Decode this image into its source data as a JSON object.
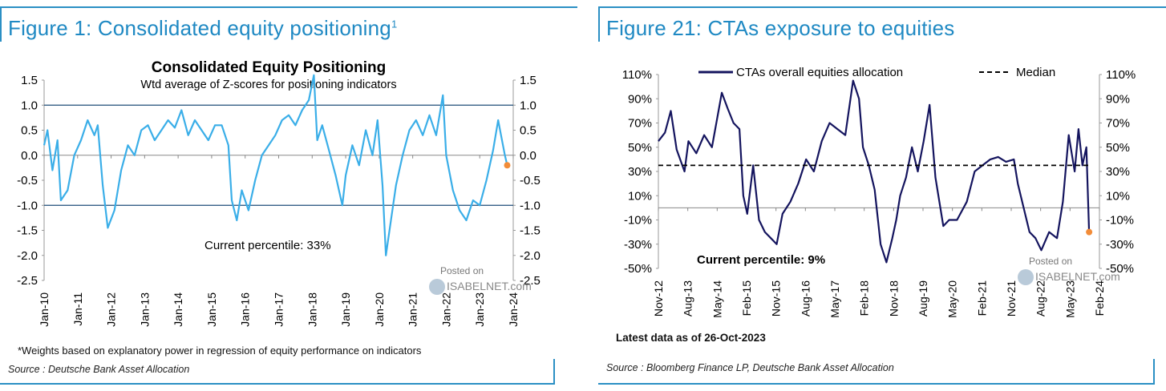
{
  "left_panel": {
    "figure_title": "Figure 1: Consolidated equity positioning",
    "figure_title_sup": "1",
    "footnote": "*Weights based on explanatory power in regression of equity performance on indicators",
    "source": "Source : Deutsche Bank Asset Allocation",
    "watermark": {
      "line1": "Posted on",
      "line2": "ISABELNET.com"
    }
  },
  "right_panel": {
    "figure_title": "Figure 21: CTAs exposure to equities",
    "latest_data": "Latest data as of 26-Oct-2023",
    "source": "Source : Bloomberg Finance LP, Deutsche Bank Asset Allocation",
    "watermark": {
      "line1": "Posted on",
      "line2": "ISABELNET.com"
    }
  },
  "chart_data": [
    {
      "type": "line",
      "title": "Consolidated Equity Positioning",
      "subtitle": "Wtd average of Z-scores for positioning indicators",
      "annotation": "Current percentile: 33%",
      "xlabel": "",
      "ylabel": "",
      "ylim": [
        -2.5,
        1.5
      ],
      "y_ticks": [
        "1.5",
        "1.0",
        "0.5",
        "0.0",
        "-0.5",
        "-1.0",
        "-1.5",
        "-2.0",
        "-2.5"
      ],
      "y_tick_values": [
        1.5,
        1.0,
        0.5,
        0.0,
        -0.5,
        -1.0,
        -1.5,
        -2.0,
        -2.5
      ],
      "xlim": [
        2010.0,
        2024.0
      ],
      "x_ticks": [
        "Jan-10",
        "Jan-11",
        "Jan-12",
        "Jan-13",
        "Jan-14",
        "Jan-15",
        "Jan-16",
        "Jan-17",
        "Jan-18",
        "Jan-19",
        "Jan-20",
        "Jan-21",
        "Jan-22",
        "Jan-23",
        "Jan-24"
      ],
      "reference_lines": [
        1.0,
        -1.0
      ],
      "grid": false,
      "dual_y_axis": true,
      "series": [
        {
          "color": "#3aaee8",
          "x": [
            2010.0,
            2010.1,
            2010.25,
            2010.4,
            2010.5,
            2010.7,
            2010.9,
            2011.1,
            2011.3,
            2011.5,
            2011.6,
            2011.75,
            2011.9,
            2012.1,
            2012.3,
            2012.5,
            2012.7,
            2012.9,
            2013.1,
            2013.3,
            2013.5,
            2013.7,
            2013.9,
            2014.1,
            2014.3,
            2014.5,
            2014.7,
            2014.9,
            2015.1,
            2015.3,
            2015.5,
            2015.6,
            2015.75,
            2015.9,
            2016.1,
            2016.3,
            2016.5,
            2016.7,
            2016.9,
            2017.1,
            2017.3,
            2017.5,
            2017.7,
            2017.9,
            2018.05,
            2018.15,
            2018.3,
            2018.5,
            2018.7,
            2018.9,
            2019.0,
            2019.2,
            2019.4,
            2019.6,
            2019.8,
            2019.95,
            2020.1,
            2020.2,
            2020.35,
            2020.5,
            2020.7,
            2020.9,
            2021.1,
            2021.3,
            2021.5,
            2021.7,
            2021.9,
            2022.0,
            2022.2,
            2022.4,
            2022.6,
            2022.8,
            2023.0,
            2023.2,
            2023.4,
            2023.55,
            2023.65,
            2023.75,
            2023.82
          ],
          "y": [
            0.2,
            0.5,
            -0.3,
            0.3,
            -0.9,
            -0.7,
            0.0,
            0.3,
            0.7,
            0.4,
            0.6,
            -0.6,
            -1.45,
            -1.1,
            -0.3,
            0.2,
            0.0,
            0.5,
            0.6,
            0.3,
            0.5,
            0.7,
            0.55,
            0.9,
            0.4,
            0.7,
            0.5,
            0.3,
            0.6,
            0.6,
            0.2,
            -0.9,
            -1.3,
            -0.7,
            -1.1,
            -0.5,
            0.0,
            0.2,
            0.4,
            0.7,
            0.8,
            0.6,
            0.9,
            1.1,
            1.6,
            0.3,
            0.6,
            0.1,
            -0.4,
            -1.0,
            -0.4,
            0.2,
            -0.2,
            0.5,
            0.0,
            0.7,
            -0.6,
            -2.0,
            -1.3,
            -0.6,
            0.0,
            0.5,
            0.7,
            0.4,
            0.8,
            0.4,
            1.2,
            0.0,
            -0.7,
            -1.1,
            -1.3,
            -0.9,
            -1.0,
            -0.5,
            0.1,
            0.7,
            0.35,
            0.0,
            -0.2
          ]
        }
      ],
      "current_point": {
        "x": 2023.82,
        "y": -0.2,
        "color": "#f28c38"
      }
    },
    {
      "type": "line",
      "annotation": "Current percentile: 9%",
      "xlabel": "",
      "ylabel": "",
      "ylim": [
        -50,
        110
      ],
      "y_ticks": [
        "110%",
        "90%",
        "70%",
        "50%",
        "30%",
        "10%",
        "-10%",
        "-30%",
        "-50%"
      ],
      "y_tick_values": [
        110,
        90,
        70,
        50,
        30,
        10,
        -10,
        -30,
        -50
      ],
      "xlim": [
        2012.833,
        2024.083
      ],
      "x_ticks": [
        "Nov-12",
        "Aug-13",
        "May-14",
        "Feb-15",
        "Nov-15",
        "Aug-16",
        "May-17",
        "Feb-18",
        "Nov-18",
        "Aug-19",
        "May-20",
        "Feb-21",
        "Nov-21",
        "Aug-22",
        "May-23",
        "Feb-24"
      ],
      "grid": false,
      "dual_y_axis": true,
      "legend_position": "top",
      "series": [
        {
          "name": "CTAs overall equities allocation",
          "color": "#14145e",
          "style": "solid",
          "x": [
            2012.833,
            2013.0,
            2013.15,
            2013.3,
            2013.5,
            2013.6,
            2013.8,
            2014.0,
            2014.2,
            2014.45,
            2014.6,
            2014.75,
            2014.9,
            2015.0,
            2015.1,
            2015.25,
            2015.4,
            2015.55,
            2015.7,
            2015.85,
            2016.0,
            2016.2,
            2016.4,
            2016.6,
            2016.8,
            2017.0,
            2017.2,
            2017.4,
            2017.6,
            2017.8,
            2017.95,
            2018.05,
            2018.2,
            2018.35,
            2018.5,
            2018.65,
            2018.8,
            2018.9,
            2019.0,
            2019.15,
            2019.3,
            2019.45,
            2019.6,
            2019.75,
            2019.9,
            2020.0,
            2020.1,
            2020.25,
            2020.45,
            2020.7,
            2020.9,
            2021.1,
            2021.3,
            2021.5,
            2021.7,
            2021.9,
            2022.0,
            2022.15,
            2022.3,
            2022.45,
            2022.6,
            2022.8,
            2023.0,
            2023.15,
            2023.3,
            2023.45,
            2023.55,
            2023.65,
            2023.75,
            2023.82
          ],
          "y": [
            55,
            62,
            80,
            48,
            30,
            55,
            45,
            60,
            50,
            95,
            82,
            70,
            65,
            10,
            -5,
            35,
            -10,
            -20,
            -25,
            -30,
            -5,
            5,
            20,
            40,
            30,
            55,
            70,
            65,
            60,
            105,
            90,
            50,
            35,
            15,
            -30,
            -45,
            -25,
            -10,
            10,
            25,
            50,
            30,
            55,
            85,
            25,
            5,
            -15,
            -10,
            -10,
            5,
            30,
            35,
            40,
            42,
            38,
            40,
            20,
            0,
            -20,
            -25,
            -35,
            -20,
            -25,
            5,
            60,
            30,
            65,
            35,
            50,
            -20
          ]
        },
        {
          "name": "Median",
          "color": "#000000",
          "style": "dashed",
          "x": [
            2012.833,
            2023.82
          ],
          "y": [
            35,
            35
          ]
        }
      ],
      "current_point": {
        "x": 2023.82,
        "y": -20,
        "color": "#f28c38"
      }
    }
  ]
}
